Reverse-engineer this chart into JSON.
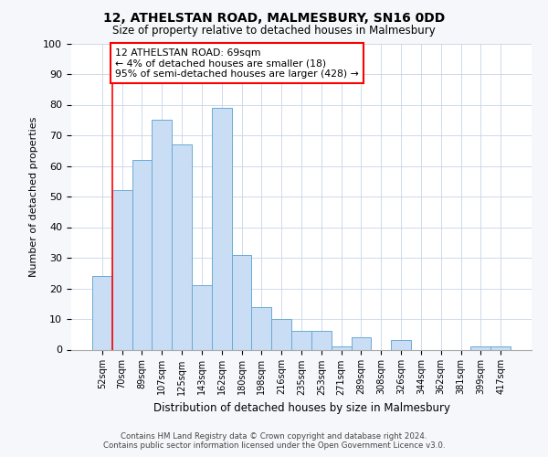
{
  "title": "12, ATHELSTAN ROAD, MALMESBURY, SN16 0DD",
  "subtitle": "Size of property relative to detached houses in Malmesbury",
  "xlabel": "Distribution of detached houses by size in Malmesbury",
  "ylabel": "Number of detached properties",
  "categories": [
    "52sqm",
    "70sqm",
    "89sqm",
    "107sqm",
    "125sqm",
    "143sqm",
    "162sqm",
    "180sqm",
    "198sqm",
    "216sqm",
    "235sqm",
    "253sqm",
    "271sqm",
    "289sqm",
    "308sqm",
    "326sqm",
    "344sqm",
    "362sqm",
    "381sqm",
    "399sqm",
    "417sqm"
  ],
  "values": [
    24,
    52,
    62,
    75,
    67,
    21,
    79,
    31,
    14,
    10,
    6,
    6,
    1,
    4,
    0,
    3,
    0,
    0,
    0,
    1,
    1
  ],
  "bar_color": "#c9ddf5",
  "bar_edge_color": "#6aaad4",
  "vline_color": "red",
  "vline_x_idx": 1,
  "annotation_line1": "12 ATHELSTAN ROAD: 69sqm",
  "annotation_line2": "← 4% of detached houses are smaller (18)",
  "annotation_line3": "95% of semi-detached houses are larger (428) →",
  "annotation_box_color": "white",
  "annotation_box_edge_color": "red",
  "ylim": [
    0,
    100
  ],
  "yticks": [
    0,
    10,
    20,
    30,
    40,
    50,
    60,
    70,
    80,
    90,
    100
  ],
  "footer_line1": "Contains HM Land Registry data © Crown copyright and database right 2024.",
  "footer_line2": "Contains public sector information licensed under the Open Government Licence v3.0.",
  "bg_color": "#f5f7fa",
  "plot_bg_color": "white",
  "grid_color": "#c8d4e8"
}
